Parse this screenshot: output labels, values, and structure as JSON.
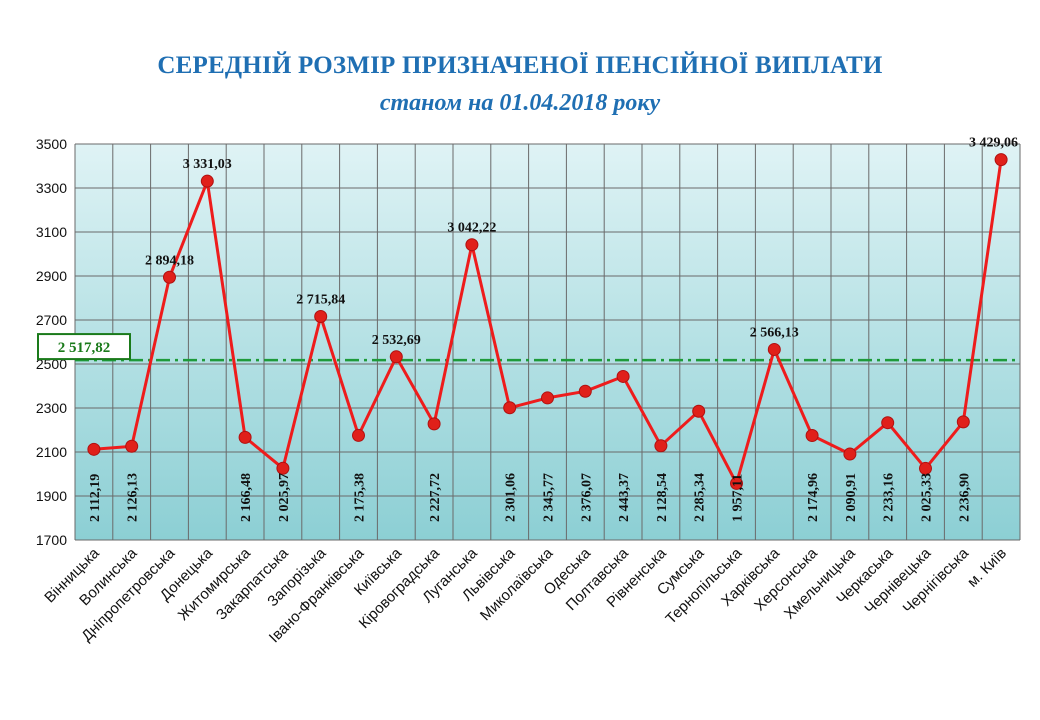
{
  "chart_data": {
    "type": "line",
    "title": "СЕРЕДНІЙ РОЗМІР ПРИЗНАЧЕНОЇ ПЕНСІЙНОЇ ВИПЛАТИ",
    "subtitle": "станом на 01.04.2018 року",
    "categories": [
      "Вінницька",
      "Волинська",
      "Дніпропетровська",
      "Донецька",
      "Житомирська",
      "Закарпатська",
      "Запорізька",
      "Івано-Франківська",
      "Київська",
      "Кіровоградська",
      "Луганська",
      "Львівська",
      "Миколаївська",
      "Одеська",
      "Полтавська",
      "Рівненська",
      "Сумська",
      "Тернопільська",
      "Харківська",
      "Херсонська",
      "Хмельницька",
      "Черкаська",
      "Чернівецька",
      "Чернігівська",
      "м. Київ"
    ],
    "values": [
      2112.19,
      2126.13,
      2894.18,
      3331.03,
      2166.48,
      2025.97,
      2715.84,
      2175.38,
      2532.69,
      2227.72,
      3042.22,
      2301.06,
      2345.77,
      2376.07,
      2443.37,
      2128.54,
      2285.34,
      1957.11,
      2566.13,
      2174.96,
      2090.91,
      2233.16,
      2025.33,
      2236.9,
      3429.06
    ],
    "data_labels": [
      "2 112,19",
      "2 126,13",
      "2 894,18",
      "3 331,03",
      "2 166,48",
      "2 025,97",
      "2 715,84",
      "2 175,38",
      "2 532,69",
      "2 227,72",
      "3 042,22",
      "2 301,06",
      "2 345,77",
      "2 376,07",
      "2 443,37",
      "2 128,54",
      "2 285,34",
      "1 957,11",
      "2 566,13",
      "2 174,96",
      "2 090,91",
      "2 233,16",
      "2 025,33",
      "2 236,90",
      "3 429,06"
    ],
    "label_rotated": [
      true,
      true,
      false,
      false,
      true,
      true,
      false,
      true,
      false,
      true,
      false,
      true,
      true,
      true,
      true,
      true,
      true,
      true,
      false,
      true,
      true,
      true,
      true,
      true,
      false
    ],
    "average": {
      "value": 2517.82,
      "label": "2 517,82",
      "color": "#1e9a3a"
    },
    "yticks": [
      1700,
      1900,
      2100,
      2300,
      2500,
      2700,
      2900,
      3100,
      3300,
      3500
    ],
    "ylim": [
      1700,
      3500
    ],
    "xlabel": "",
    "ylabel": "",
    "grid": true,
    "line_color": "#ee1c1c",
    "marker_color": "#e0201a",
    "plot_background": [
      "#dff3f5",
      "#8ccfd4"
    ]
  }
}
